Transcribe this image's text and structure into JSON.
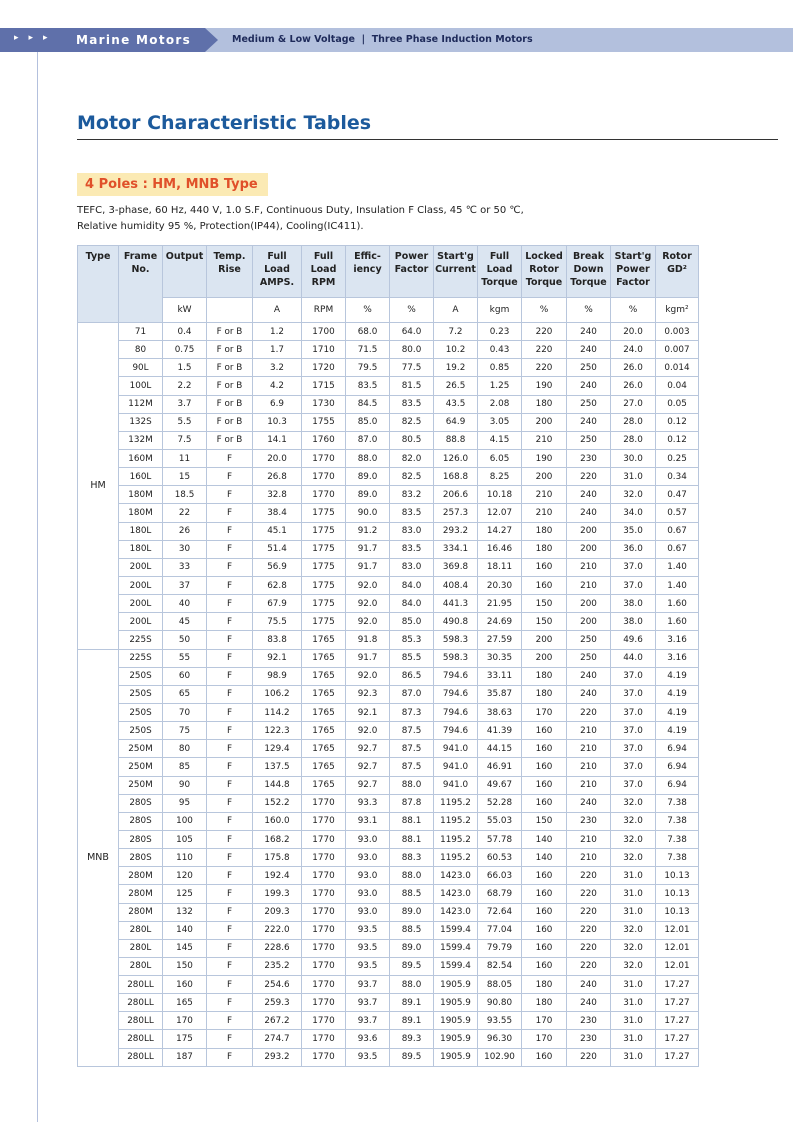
{
  "header": {
    "section": "Marine Motors",
    "subtitle": "Medium & Low Voltage  |  Three Phase Induction Motors"
  },
  "title": "Motor Characteristic Tables",
  "subheading": "4 Poles : HM, MNB Type",
  "description": [
    "TEFC, 3-phase, 60 Hz, 440 V, 1.0 S.F, Continuous Duty, Insulation F Class, 45 ℃ or 50 ℃,",
    "Relative humidity 95 %, Protection(IP44), Cooling(IC411)."
  ],
  "table": {
    "columns": [
      {
        "lines": [
          "Type"
        ]
      },
      {
        "lines": [
          "Frame",
          "No."
        ]
      },
      {
        "lines": [
          "Output"
        ],
        "unit": "kW"
      },
      {
        "lines": [
          "Temp.",
          "Rise"
        ]
      },
      {
        "lines": [
          "Full",
          "Load",
          "AMPS."
        ],
        "unit": "A"
      },
      {
        "lines": [
          "Full",
          "Load",
          "RPM"
        ],
        "unit": "RPM"
      },
      {
        "lines": [
          "Effic-",
          "iency"
        ],
        "unit": "%"
      },
      {
        "lines": [
          "Power",
          "Factor"
        ],
        "unit": "%"
      },
      {
        "lines": [
          "Start'g",
          "Current"
        ],
        "unit": "A"
      },
      {
        "lines": [
          "Full",
          "Load",
          "Torque"
        ],
        "unit": "kgm"
      },
      {
        "lines": [
          "Locked",
          "Rotor",
          "Torque"
        ],
        "unit": "%"
      },
      {
        "lines": [
          "Break",
          "Down",
          "Torque"
        ],
        "unit": "%"
      },
      {
        "lines": [
          "Start'g",
          "Power",
          "Factor"
        ],
        "unit": "%"
      },
      {
        "lines": [
          "Rotor",
          "GD²"
        ],
        "unit": "kgm²"
      }
    ],
    "groups": [
      {
        "type": "HM",
        "rows": [
          [
            "71",
            "0.4",
            "F or B",
            "1.2",
            "1700",
            "68.0",
            "64.0",
            "7.2",
            "0.23",
            "220",
            "240",
            "20.0",
            "0.003"
          ],
          [
            "80",
            "0.75",
            "F or B",
            "1.7",
            "1710",
            "71.5",
            "80.0",
            "10.2",
            "0.43",
            "220",
            "240",
            "24.0",
            "0.007"
          ],
          [
            "90L",
            "1.5",
            "F or B",
            "3.2",
            "1720",
            "79.5",
            "77.5",
            "19.2",
            "0.85",
            "220",
            "250",
            "26.0",
            "0.014"
          ],
          [
            "100L",
            "2.2",
            "F or B",
            "4.2",
            "1715",
            "83.5",
            "81.5",
            "26.5",
            "1.25",
            "190",
            "240",
            "26.0",
            "0.04"
          ],
          [
            "112M",
            "3.7",
            "F or B",
            "6.9",
            "1730",
            "84.5",
            "83.5",
            "43.5",
            "2.08",
            "180",
            "250",
            "27.0",
            "0.05"
          ],
          [
            "132S",
            "5.5",
            "F or B",
            "10.3",
            "1755",
            "85.0",
            "82.5",
            "64.9",
            "3.05",
            "200",
            "240",
            "28.0",
            "0.12"
          ],
          [
            "132M",
            "7.5",
            "F or B",
            "14.1",
            "1760",
            "87.0",
            "80.5",
            "88.8",
            "4.15",
            "210",
            "250",
            "28.0",
            "0.12"
          ],
          [
            "160M",
            "11",
            "F",
            "20.0",
            "1770",
            "88.0",
            "82.0",
            "126.0",
            "6.05",
            "190",
            "230",
            "30.0",
            "0.25"
          ],
          [
            "160L",
            "15",
            "F",
            "26.8",
            "1770",
            "89.0",
            "82.5",
            "168.8",
            "8.25",
            "200",
            "220",
            "31.0",
            "0.34"
          ],
          [
            "180M",
            "18.5",
            "F",
            "32.8",
            "1770",
            "89.0",
            "83.2",
            "206.6",
            "10.18",
            "210",
            "240",
            "32.0",
            "0.47"
          ],
          [
            "180M",
            "22",
            "F",
            "38.4",
            "1775",
            "90.0",
            "83.5",
            "257.3",
            "12.07",
            "210",
            "240",
            "34.0",
            "0.57"
          ],
          [
            "180L",
            "26",
            "F",
            "45.1",
            "1775",
            "91.2",
            "83.0",
            "293.2",
            "14.27",
            "180",
            "200",
            "35.0",
            "0.67"
          ],
          [
            "180L",
            "30",
            "F",
            "51.4",
            "1775",
            "91.7",
            "83.5",
            "334.1",
            "16.46",
            "180",
            "200",
            "36.0",
            "0.67"
          ],
          [
            "200L",
            "33",
            "F",
            "56.9",
            "1775",
            "91.7",
            "83.0",
            "369.8",
            "18.11",
            "160",
            "210",
            "37.0",
            "1.40"
          ],
          [
            "200L",
            "37",
            "F",
            "62.8",
            "1775",
            "92.0",
            "84.0",
            "408.4",
            "20.30",
            "160",
            "210",
            "37.0",
            "1.40"
          ],
          [
            "200L",
            "40",
            "F",
            "67.9",
            "1775",
            "92.0",
            "84.0",
            "441.3",
            "21.95",
            "150",
            "200",
            "38.0",
            "1.60"
          ],
          [
            "200L",
            "45",
            "F",
            "75.5",
            "1775",
            "92.0",
            "85.0",
            "490.8",
            "24.69",
            "150",
            "200",
            "38.0",
            "1.60"
          ],
          [
            "225S",
            "50",
            "F",
            "83.8",
            "1765",
            "91.8",
            "85.3",
            "598.3",
            "27.59",
            "200",
            "250",
            "49.6",
            "3.16"
          ]
        ]
      },
      {
        "type": "MNB",
        "rows": [
          [
            "225S",
            "55",
            "F",
            "92.1",
            "1765",
            "91.7",
            "85.5",
            "598.3",
            "30.35",
            "200",
            "250",
            "44.0",
            "3.16"
          ],
          [
            "250S",
            "60",
            "F",
            "98.9",
            "1765",
            "92.0",
            "86.5",
            "794.6",
            "33.11",
            "180",
            "240",
            "37.0",
            "4.19"
          ],
          [
            "250S",
            "65",
            "F",
            "106.2",
            "1765",
            "92.3",
            "87.0",
            "794.6",
            "35.87",
            "180",
            "240",
            "37.0",
            "4.19"
          ],
          [
            "250S",
            "70",
            "F",
            "114.2",
            "1765",
            "92.1",
            "87.3",
            "794.6",
            "38.63",
            "170",
            "220",
            "37.0",
            "4.19"
          ],
          [
            "250S",
            "75",
            "F",
            "122.3",
            "1765",
            "92.0",
            "87.5",
            "794.6",
            "41.39",
            "160",
            "210",
            "37.0",
            "4.19"
          ],
          [
            "250M",
            "80",
            "F",
            "129.4",
            "1765",
            "92.7",
            "87.5",
            "941.0",
            "44.15",
            "160",
            "210",
            "37.0",
            "6.94"
          ],
          [
            "250M",
            "85",
            "F",
            "137.5",
            "1765",
            "92.7",
            "87.5",
            "941.0",
            "46.91",
            "160",
            "210",
            "37.0",
            "6.94"
          ],
          [
            "250M",
            "90",
            "F",
            "144.8",
            "1765",
            "92.7",
            "88.0",
            "941.0",
            "49.67",
            "160",
            "210",
            "37.0",
            "6.94"
          ],
          [
            "280S",
            "95",
            "F",
            "152.2",
            "1770",
            "93.3",
            "87.8",
            "1195.2",
            "52.28",
            "160",
            "240",
            "32.0",
            "7.38"
          ],
          [
            "280S",
            "100",
            "F",
            "160.0",
            "1770",
            "93.1",
            "88.1",
            "1195.2",
            "55.03",
            "150",
            "230",
            "32.0",
            "7.38"
          ],
          [
            "280S",
            "105",
            "F",
            "168.2",
            "1770",
            "93.0",
            "88.1",
            "1195.2",
            "57.78",
            "140",
            "210",
            "32.0",
            "7.38"
          ],
          [
            "280S",
            "110",
            "F",
            "175.8",
            "1770",
            "93.0",
            "88.3",
            "1195.2",
            "60.53",
            "140",
            "210",
            "32.0",
            "7.38"
          ],
          [
            "280M",
            "120",
            "F",
            "192.4",
            "1770",
            "93.0",
            "88.0",
            "1423.0",
            "66.03",
            "160",
            "220",
            "31.0",
            "10.13"
          ],
          [
            "280M",
            "125",
            "F",
            "199.3",
            "1770",
            "93.0",
            "88.5",
            "1423.0",
            "68.79",
            "160",
            "220",
            "31.0",
            "10.13"
          ],
          [
            "280M",
            "132",
            "F",
            "209.3",
            "1770",
            "93.0",
            "89.0",
            "1423.0",
            "72.64",
            "160",
            "220",
            "31.0",
            "10.13"
          ],
          [
            "280L",
            "140",
            "F",
            "222.0",
            "1770",
            "93.5",
            "88.5",
            "1599.4",
            "77.04",
            "160",
            "220",
            "32.0",
            "12.01"
          ],
          [
            "280L",
            "145",
            "F",
            "228.6",
            "1770",
            "93.5",
            "89.0",
            "1599.4",
            "79.79",
            "160",
            "220",
            "32.0",
            "12.01"
          ],
          [
            "280L",
            "150",
            "F",
            "235.2",
            "1770",
            "93.5",
            "89.5",
            "1599.4",
            "82.54",
            "160",
            "220",
            "32.0",
            "12.01"
          ],
          [
            "280LL",
            "160",
            "F",
            "254.6",
            "1770",
            "93.7",
            "88.0",
            "1905.9",
            "88.05",
            "180",
            "240",
            "31.0",
            "17.27"
          ],
          [
            "280LL",
            "165",
            "F",
            "259.3",
            "1770",
            "93.7",
            "89.1",
            "1905.9",
            "90.80",
            "180",
            "240",
            "31.0",
            "17.27"
          ],
          [
            "280LL",
            "170",
            "F",
            "267.2",
            "1770",
            "93.7",
            "89.1",
            "1905.9",
            "93.55",
            "170",
            "230",
            "31.0",
            "17.27"
          ],
          [
            "280LL",
            "175",
            "F",
            "274.7",
            "1770",
            "93.6",
            "89.3",
            "1905.9",
            "96.30",
            "170",
            "230",
            "31.0",
            "17.27"
          ],
          [
            "280LL",
            "187",
            "F",
            "293.2",
            "1770",
            "93.5",
            "89.5",
            "1905.9",
            "102.90",
            "160",
            "220",
            "31.0",
            "17.27"
          ]
        ]
      }
    ]
  }
}
